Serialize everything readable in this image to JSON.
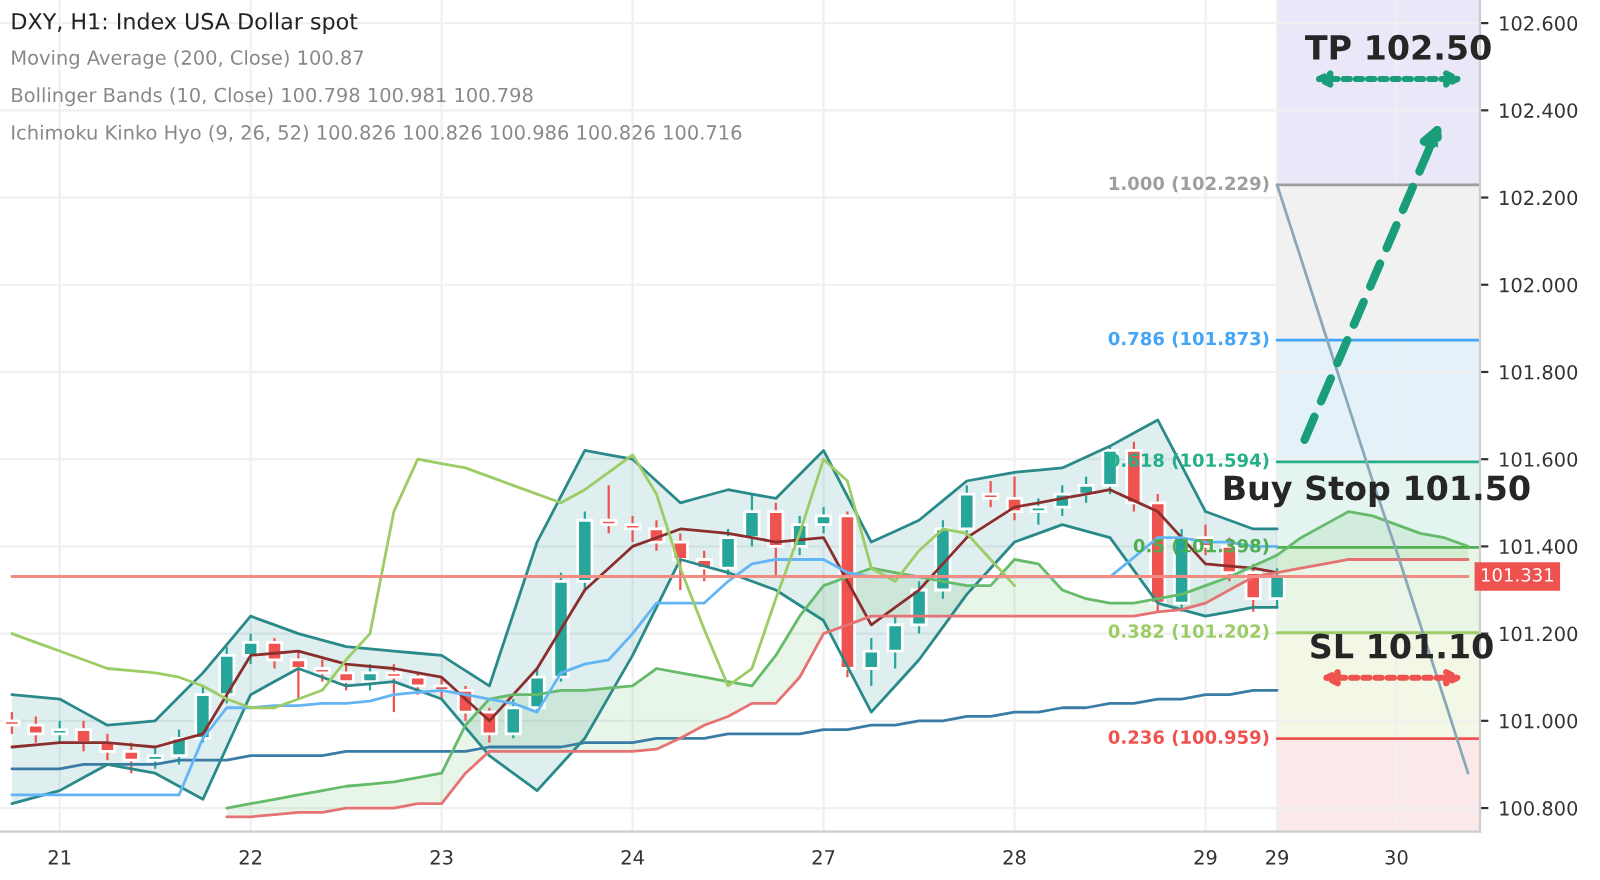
{
  "chart_data": {
    "type": "candlestick",
    "title": "DXY, H1: Index USA Dollar spot",
    "categories": [
      null,
      null,
      "21",
      null,
      null,
      null,
      null,
      null,
      null,
      null,
      "22",
      null,
      null,
      null,
      null,
      null,
      null,
      null,
      "23",
      null,
      null,
      null,
      null,
      null,
      null,
      null,
      "24",
      null,
      null,
      null,
      null,
      null,
      null,
      null,
      "27",
      null,
      null,
      null,
      null,
      null,
      null,
      null,
      "28",
      null,
      null,
      null,
      null,
      null,
      null,
      null,
      "29",
      null,
      null,
      "29",
      null,
      null,
      null,
      null,
      "30",
      null,
      null,
      null
    ],
    "colors": [
      "#ef5350",
      "#ef5350",
      "#26a69a",
      "#ef5350",
      "#ef5350",
      "#ef5350",
      "#26a69a",
      "#26a69a",
      "#26a69a",
      "#26a69a",
      "#26a69a",
      "#ef5350",
      "#ef5350",
      "#ef5350",
      "#ef5350",
      "#26a69a",
      "#ef5350",
      "#ef5350",
      "#ef5350",
      "#ef5350",
      "#ef5350",
      "#26a69a",
      "#26a69a",
      "#26a69a",
      "#26a69a",
      "#ef5350",
      "#ef5350",
      "#ef5350",
      "#ef5350",
      "#ef5350",
      "#26a69a",
      "#26a69a",
      "#ef5350",
      "#26a69a",
      "#26a69a",
      "#ef5350",
      "#26a69a",
      "#26a69a",
      "#26a69a",
      "#26a69a",
      "#26a69a",
      "#ef5350",
      "#ef5350",
      "#26a69a",
      "#26a69a",
      "#26a69a",
      "#26a69a",
      "#ef5350",
      "#ef5350",
      "#26a69a",
      "#ef5350",
      "#ef5350",
      "#ef5350",
      "#26a69a",
      null,
      null,
      null,
      null,
      null,
      null,
      null,
      null
    ],
    "ohlc": [
      [
        101.0,
        101.02,
        100.97,
        100.99
      ],
      [
        100.99,
        101.01,
        100.95,
        100.97
      ],
      [
        100.97,
        101.0,
        100.95,
        100.98
      ],
      [
        100.98,
        101.0,
        100.93,
        100.95
      ],
      [
        100.95,
        100.97,
        100.91,
        100.93
      ],
      [
        100.93,
        100.95,
        100.88,
        100.91
      ],
      [
        100.91,
        100.94,
        100.89,
        100.92
      ],
      [
        100.92,
        100.98,
        100.9,
        100.96
      ],
      [
        100.96,
        101.08,
        100.95,
        101.06
      ],
      [
        101.06,
        101.17,
        101.04,
        101.15
      ],
      [
        101.15,
        101.2,
        101.13,
        101.18
      ],
      [
        101.18,
        101.19,
        101.12,
        101.14
      ],
      [
        101.14,
        101.16,
        101.05,
        101.12
      ],
      [
        101.12,
        101.14,
        101.09,
        101.11
      ],
      [
        101.11,
        101.13,
        101.07,
        101.09
      ],
      [
        101.09,
        101.13,
        101.07,
        101.11
      ],
      [
        101.11,
        101.13,
        101.02,
        101.1
      ],
      [
        101.1,
        101.11,
        101.06,
        101.08
      ],
      [
        101.08,
        101.1,
        101.05,
        101.07
      ],
      [
        101.07,
        101.08,
        101.0,
        101.02
      ],
      [
        101.02,
        101.03,
        100.95,
        100.97
      ],
      [
        100.97,
        101.05,
        100.96,
        101.03
      ],
      [
        101.03,
        101.12,
        101.02,
        101.1
      ],
      [
        101.1,
        101.34,
        101.09,
        101.32
      ],
      [
        101.32,
        101.48,
        101.3,
        101.46
      ],
      [
        101.46,
        101.54,
        101.43,
        101.45
      ],
      [
        101.45,
        101.47,
        101.41,
        101.44
      ],
      [
        101.44,
        101.46,
        101.39,
        101.41
      ],
      [
        101.41,
        101.43,
        101.3,
        101.37
      ],
      [
        101.37,
        101.39,
        101.32,
        101.35
      ],
      [
        101.35,
        101.44,
        101.33,
        101.42
      ],
      [
        101.42,
        101.52,
        101.4,
        101.48
      ],
      [
        101.48,
        101.5,
        101.33,
        101.4
      ],
      [
        101.4,
        101.47,
        101.38,
        101.45
      ],
      [
        101.45,
        101.49,
        101.43,
        101.47
      ],
      [
        101.47,
        101.48,
        101.1,
        101.12
      ],
      [
        101.12,
        101.19,
        101.08,
        101.16
      ],
      [
        101.16,
        101.24,
        101.12,
        101.22
      ],
      [
        101.22,
        101.32,
        101.2,
        101.3
      ],
      [
        101.3,
        101.46,
        101.28,
        101.44
      ],
      [
        101.44,
        101.54,
        101.42,
        101.52
      ],
      [
        101.52,
        101.55,
        101.49,
        101.51
      ],
      [
        101.51,
        101.56,
        101.46,
        101.48
      ],
      [
        101.48,
        101.51,
        101.45,
        101.49
      ],
      [
        101.49,
        101.54,
        101.47,
        101.52
      ],
      [
        101.52,
        101.56,
        101.5,
        101.54
      ],
      [
        101.54,
        101.63,
        101.52,
        101.62
      ],
      [
        101.62,
        101.64,
        101.48,
        101.5
      ],
      [
        101.5,
        101.52,
        101.25,
        101.27
      ],
      [
        101.27,
        101.44,
        101.25,
        101.42
      ],
      [
        101.42,
        101.45,
        101.38,
        101.4
      ],
      [
        101.4,
        101.42,
        101.32,
        101.34
      ],
      [
        101.34,
        101.36,
        101.25,
        101.28
      ],
      [
        101.28,
        101.35,
        101.26,
        101.331
      ],
      null,
      null,
      null,
      null,
      null,
      null,
      null,
      null
    ],
    "series": [
      {
        "type": "line",
        "color": "#3a7ca5",
        "values": [
          100.89,
          100.89,
          100.89,
          100.9,
          100.9,
          100.9,
          100.9,
          100.91,
          100.91,
          100.91,
          100.92,
          100.92,
          100.92,
          100.92,
          100.93,
          100.93,
          100.93,
          100.93,
          100.93,
          100.93,
          100.94,
          100.94,
          100.94,
          100.94,
          100.95,
          100.95,
          100.95,
          100.96,
          100.96,
          100.96,
          100.97,
          100.97,
          100.97,
          100.97,
          100.98,
          100.98,
          100.99,
          100.99,
          101.0,
          101.0,
          101.01,
          101.01,
          101.02,
          101.02,
          101.03,
          101.03,
          101.04,
          101.04,
          101.05,
          101.05,
          101.06,
          101.06,
          101.07,
          101.07,
          null,
          null,
          null,
          null,
          null,
          null,
          null,
          null
        ]
      },
      {
        "type": "line",
        "color": "#8b2e2e",
        "values": [
          100.94,
          100.945,
          100.95,
          100.95,
          100.95,
          100.945,
          100.94,
          100.955,
          100.97,
          101.06,
          101.15,
          101.155,
          101.16,
          101.145,
          101.13,
          101.125,
          101.12,
          101.11,
          101.1,
          101.05,
          101.0,
          101.06,
          101.12,
          101.21,
          101.3,
          101.35,
          101.4,
          101.42,
          101.44,
          101.435,
          101.43,
          101.42,
          101.41,
          101.415,
          101.42,
          101.32,
          101.22,
          101.26,
          101.3,
          101.36,
          101.42,
          101.455,
          101.49,
          101.5,
          101.51,
          101.52,
          101.53,
          101.505,
          101.48,
          101.42,
          101.36,
          101.355,
          101.35,
          101.34,
          null,
          null,
          null,
          null,
          null,
          null,
          null,
          null
        ]
      },
      {
        "type": "line",
        "color": "#2a8a8a",
        "values": [
          101.06,
          101.055,
          101.05,
          101.02,
          100.99,
          100.995,
          101.0,
          101.055,
          101.11,
          101.175,
          101.24,
          101.22,
          101.2,
          101.185,
          101.17,
          101.165,
          101.16,
          101.155,
          101.15,
          101.115,
          101.08,
          101.245,
          101.41,
          101.515,
          101.62,
          101.61,
          101.6,
          101.55,
          101.5,
          101.515,
          101.53,
          101.52,
          101.51,
          101.565,
          101.62,
          101.515,
          101.41,
          101.435,
          101.46,
          101.505,
          101.55,
          101.56,
          101.57,
          101.575,
          101.58,
          101.605,
          101.63,
          101.66,
          101.69,
          101.585,
          101.48,
          101.46,
          101.44,
          101.44,
          null,
          null,
          null,
          null,
          null,
          null,
          null,
          null
        ],
        "lower": [
          100.81,
          100.825,
          100.84,
          100.87,
          100.9,
          100.89,
          100.88,
          100.85,
          100.82,
          100.94,
          101.06,
          101.09,
          101.12,
          101.1,
          101.08,
          101.085,
          101.09,
          101.07,
          101.05,
          100.985,
          100.92,
          100.88,
          100.84,
          100.9,
          100.96,
          101.055,
          101.15,
          101.26,
          101.37,
          101.355,
          101.34,
          101.32,
          101.3,
          101.265,
          101.23,
          101.125,
          101.02,
          101.08,
          101.14,
          101.215,
          101.29,
          101.35,
          101.41,
          101.43,
          101.45,
          101.435,
          101.42,
          101.345,
          101.27,
          101.255,
          101.24,
          101.25,
          101.26,
          101.26,
          null,
          null,
          null,
          null,
          null,
          null,
          null,
          null
        ],
        "upper": [
          101.06,
          101.055,
          101.05,
          101.02,
          100.99,
          100.995,
          101.0,
          101.055,
          101.11,
          101.175,
          101.24,
          101.22,
          101.2,
          101.185,
          101.17,
          101.165,
          101.16,
          101.155,
          101.15,
          101.115,
          101.08,
          101.245,
          101.41,
          101.515,
          101.62,
          101.61,
          101.6,
          101.55,
          101.5,
          101.515,
          101.53,
          101.52,
          101.51,
          101.565,
          101.62,
          101.515,
          101.41,
          101.435,
          101.46,
          101.505,
          101.55,
          101.56,
          101.57,
          101.575,
          101.58,
          101.605,
          101.63,
          101.66,
          101.69,
          101.585,
          101.48,
          101.46,
          101.44,
          101.44,
          null,
          null,
          null,
          null,
          null,
          null,
          null,
          null
        ]
      },
      {
        "type": "line",
        "color": "#2a8a8a",
        "values": [
          100.81,
          100.825,
          100.84,
          100.87,
          100.9,
          100.89,
          100.88,
          100.85,
          100.82,
          100.94,
          101.06,
          101.09,
          101.12,
          101.1,
          101.08,
          101.085,
          101.09,
          101.07,
          101.05,
          100.985,
          100.92,
          100.88,
          100.84,
          100.9,
          100.96,
          101.055,
          101.15,
          101.26,
          101.37,
          101.355,
          101.34,
          101.32,
          101.3,
          101.265,
          101.23,
          101.125,
          101.02,
          101.08,
          101.14,
          101.215,
          101.29,
          101.35,
          101.41,
          101.43,
          101.45,
          101.435,
          101.42,
          101.345,
          101.27,
          101.255,
          101.24,
          101.25,
          101.26,
          101.26,
          null,
          null,
          null,
          null,
          null,
          null,
          null,
          null
        ]
      },
      {
        "type": "line",
        "color": "#66bb6a",
        "values": [
          null,
          null,
          null,
          null,
          null,
          null,
          null,
          null,
          null,
          100.8,
          100.81,
          100.82,
          100.83,
          100.84,
          100.85,
          100.855,
          100.86,
          100.87,
          100.88,
          100.99,
          101.05,
          101.06,
          101.06,
          101.07,
          101.07,
          101.075,
          101.08,
          101.12,
          101.11,
          101.1,
          101.09,
          101.08,
          101.15,
          101.24,
          101.31,
          101.33,
          101.35,
          101.34,
          101.33,
          101.32,
          101.31,
          101.31,
          101.37,
          101.36,
          101.3,
          101.28,
          101.27,
          101.27,
          101.28,
          101.29,
          101.31,
          101.33,
          101.355,
          101.38,
          101.42,
          101.45,
          101.48,
          101.47,
          101.45,
          101.43,
          101.42,
          101.4
        ],
        "lower": [
          null,
          null,
          null,
          null,
          null,
          null,
          null,
          null,
          null,
          100.78,
          100.78,
          100.785,
          100.79,
          100.79,
          100.8,
          100.8,
          100.8,
          100.81,
          100.81,
          100.88,
          100.93,
          100.93,
          100.93,
          100.93,
          100.93,
          100.93,
          100.93,
          100.935,
          100.96,
          100.99,
          101.01,
          101.04,
          101.04,
          101.1,
          101.2,
          101.22,
          101.24,
          101.24,
          101.24,
          101.24,
          101.24,
          101.24,
          101.24,
          101.24,
          101.24,
          101.24,
          101.24,
          101.24,
          101.25,
          101.255,
          101.27,
          101.3,
          101.33,
          101.34,
          101.35,
          101.36,
          101.37,
          101.37,
          101.37,
          101.37,
          101.37,
          101.37
        ],
        "upper": [
          null,
          null,
          null,
          null,
          null,
          null,
          null,
          null,
          null,
          100.8,
          100.81,
          100.82,
          100.83,
          100.84,
          100.85,
          100.855,
          100.86,
          100.87,
          100.88,
          100.99,
          101.05,
          101.06,
          101.06,
          101.07,
          101.07,
          101.075,
          101.08,
          101.12,
          101.11,
          101.1,
          101.09,
          101.08,
          101.15,
          101.24,
          101.31,
          101.33,
          101.35,
          101.34,
          101.33,
          101.32,
          101.31,
          101.31,
          101.37,
          101.36,
          101.3,
          101.28,
          101.27,
          101.27,
          101.28,
          101.29,
          101.31,
          101.33,
          101.355,
          101.38,
          101.42,
          101.45,
          101.48,
          101.47,
          101.45,
          101.43,
          101.42,
          101.4
        ]
      },
      {
        "type": "line",
        "color": "#e57373",
        "values": [
          null,
          null,
          null,
          null,
          null,
          null,
          null,
          null,
          null,
          100.78,
          100.78,
          100.785,
          100.79,
          100.79,
          100.8,
          100.8,
          100.8,
          100.81,
          100.81,
          100.88,
          100.93,
          100.93,
          100.93,
          100.93,
          100.93,
          100.93,
          100.93,
          100.935,
          100.96,
          100.99,
          101.01,
          101.04,
          101.04,
          101.1,
          101.2,
          101.22,
          101.24,
          101.24,
          101.24,
          101.24,
          101.24,
          101.24,
          101.24,
          101.24,
          101.24,
          101.24,
          101.24,
          101.24,
          101.25,
          101.255,
          101.27,
          101.3,
          101.33,
          101.34,
          101.35,
          101.36,
          101.37,
          101.37,
          101.37,
          101.37,
          101.37,
          101.37
        ]
      },
      {
        "type": "line",
        "color": "#64b5f6",
        "values": [
          100.83,
          100.83,
          100.83,
          100.83,
          100.83,
          100.83,
          100.83,
          100.83,
          100.96,
          101.03,
          101.03,
          101.035,
          101.035,
          101.04,
          101.04,
          101.045,
          101.06,
          101.065,
          101.07,
          101.06,
          101.05,
          101.04,
          101.02,
          101.11,
          101.13,
          101.14,
          101.2,
          101.27,
          101.27,
          101.27,
          101.32,
          101.36,
          101.37,
          101.37,
          101.37,
          101.34,
          101.33,
          101.33,
          101.33,
          101.33,
          101.33,
          101.33,
          101.33,
          101.33,
          101.33,
          101.33,
          101.33,
          101.375,
          101.42,
          101.42,
          101.41,
          101.41,
          101.4,
          101.4,
          null,
          null,
          null,
          null,
          null,
          null,
          null,
          null
        ]
      },
      {
        "type": "line",
        "color": "#9ccc65",
        "values": [
          101.2,
          101.18,
          101.16,
          101.14,
          101.12,
          101.115,
          101.11,
          101.1,
          101.08,
          101.05,
          101.03,
          101.03,
          101.05,
          101.07,
          101.14,
          101.2,
          101.48,
          101.6,
          101.59,
          101.58,
          101.56,
          101.54,
          101.52,
          101.5,
          101.53,
          101.57,
          101.61,
          101.52,
          101.35,
          101.21,
          101.08,
          101.12,
          101.28,
          101.43,
          101.6,
          101.55,
          101.35,
          101.32,
          101.39,
          101.44,
          101.43,
          101.37,
          101.31,
          null,
          null,
          null,
          null,
          null,
          null,
          null,
          null,
          null,
          null,
          null,
          null,
          null,
          null,
          null,
          null,
          null,
          null,
          null
        ]
      },
      {
        "type": "line",
        "color": "#f28b82",
        "values": [
          101.331,
          101.331,
          101.331,
          101.331,
          101.331,
          101.331,
          101.331,
          101.331,
          101.331,
          101.331,
          101.331,
          101.331,
          101.331,
          101.331,
          101.331,
          101.331,
          101.331,
          101.331,
          101.331,
          101.331,
          101.331,
          101.331,
          101.331,
          101.331,
          101.331,
          101.331,
          101.331,
          101.331,
          101.331,
          101.331,
          101.331,
          101.331,
          101.331,
          101.331,
          101.331,
          101.331,
          101.331,
          101.331,
          101.331,
          101.331,
          101.331,
          101.331,
          101.331,
          101.331,
          101.331,
          101.331,
          101.331,
          101.331,
          101.331,
          101.331,
          101.331,
          101.331,
          101.331,
          101.331,
          101.331,
          101.331,
          101.331,
          101.331,
          101.331,
          101.331,
          101.331,
          101.331
        ]
      },
      {
        "type": "line",
        "color": "#8aa8b8",
        "values": [
          null,
          null,
          null,
          null,
          null,
          null,
          null,
          null,
          null,
          null,
          null,
          null,
          null,
          null,
          null,
          null,
          null,
          null,
          null,
          null,
          null,
          null,
          null,
          null,
          null,
          null,
          null,
          null,
          null,
          null,
          null,
          null,
          null,
          null,
          null,
          null,
          null,
          null,
          null,
          null,
          null,
          null,
          null,
          null,
          null,
          null,
          null,
          null,
          null,
          null,
          null,
          null,
          null,
          102.229,
          102.06,
          101.89,
          101.72,
          101.55,
          101.39,
          101.22,
          101.05,
          100.88
        ]
      }
    ],
    "ref_lines": [
      {
        "axis": "y",
        "value": 102.229,
        "label": "1.000 (102.229)",
        "color": "#9e9e9e"
      },
      {
        "axis": "y",
        "value": 101.873,
        "label": "0.786 (101.873)",
        "color": "#42a5f5"
      },
      {
        "axis": "y",
        "value": 101.594,
        "label": "0.618 (101.594)",
        "color": "#26b08a"
      },
      {
        "axis": "y",
        "value": 101.398,
        "label": "0.5 (101.398)",
        "color": "#4caf50"
      },
      {
        "axis": "y",
        "value": 101.202,
        "label": "0.382 (101.202)",
        "color": "#9ccc65"
      },
      {
        "axis": "y",
        "value": 100.959,
        "label": "0.236 (100.959)",
        "color": "#ef5350"
      }
    ],
    "bands": [
      {
        "axis": "y",
        "from": 102.229,
        "to": 102.653,
        "color": "#e9e7f8"
      },
      {
        "axis": "y",
        "from": 101.873,
        "to": 102.229,
        "color": "#f1f1f1"
      },
      {
        "axis": "y",
        "from": 101.594,
        "to": 101.873,
        "color": "#e5f1f8"
      },
      {
        "axis": "y",
        "from": 101.398,
        "to": 101.594,
        "color": "#e4f5f1"
      },
      {
        "axis": "y",
        "from": 101.202,
        "to": 101.398,
        "color": "#e9f6e6"
      },
      {
        "axis": "y",
        "from": 100.959,
        "to": 101.202,
        "color": "#f3f7e6"
      },
      {
        "axis": "y",
        "from": 100.746,
        "to": 100.959,
        "color": "#fbe9e9"
      }
    ],
    "annotations": [
      "Moving Average (200, Close) 100.87",
      "Bollinger Bands (10, Close) 100.798 100.981 100.798",
      "Ichimoku Kinko Hyo (9, 26, 52) 100.826 100.826 100.986 100.826 100.716",
      "TP 102.50",
      "Buy Stop 101.50",
      "SL 101.10",
      {
        "text": "101.331",
        "y": 101.331
      }
    ],
    "ylim": [
      100.746,
      102.653
    ],
    "yticks": [
      {
        "value": 100.8,
        "label": "100.800"
      },
      {
        "value": 101.0,
        "label": "101.000"
      },
      {
        "value": 101.2,
        "label": "101.200"
      },
      {
        "value": 101.4,
        "label": "101.400"
      },
      {
        "value": 101.6,
        "label": "101.600"
      },
      {
        "value": 101.8,
        "label": "101.800"
      },
      {
        "value": 102.0,
        "label": "102.000"
      },
      {
        "value": 102.2,
        "label": "102.200"
      },
      {
        "value": 102.4,
        "label": "102.400"
      },
      {
        "value": 102.6,
        "label": "102.600"
      }
    ],
    "grid": true
  }
}
